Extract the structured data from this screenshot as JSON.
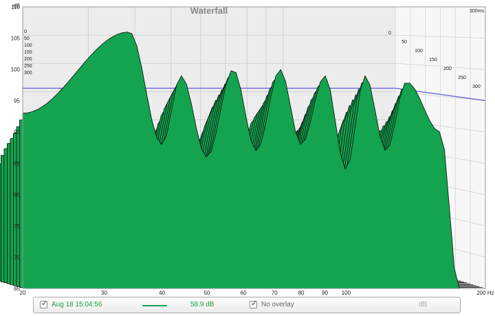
{
  "chart_data": {
    "type": "area",
    "title": "Waterfall",
    "xlabel": "",
    "ylabel": "dB",
    "x_unit": "Hz",
    "x_scale": "log",
    "xlim": [
      20,
      200
    ],
    "ylim": [
      65,
      110
    ],
    "x_ticks": [
      "20",
      "30",
      "40",
      "50",
      "60",
      "70",
      "80",
      "90",
      "100",
      "200 Hz"
    ],
    "y_ticks": [
      "65",
      "70",
      "75",
      "80",
      "85",
      "90",
      "95",
      "100",
      "105",
      "110"
    ],
    "time_axis_label": "300ms",
    "time_ticks": [
      "0",
      "50",
      "100",
      "150",
      "200",
      "250",
      "300"
    ],
    "reference_level_db": 97,
    "series_color": "#14a34f",
    "reference_line_color": "#6a66d8",
    "peaks": [
      {
        "freq_hz": 34,
        "level_db": 106
      },
      {
        "freq_hz": 44,
        "level_db": 99
      },
      {
        "freq_hz": 57,
        "level_db": 100
      },
      {
        "freq_hz": 72,
        "level_db": 100
      },
      {
        "freq_hz": 90,
        "level_db": 99
      },
      {
        "freq_hz": 110,
        "level_db": 99
      },
      {
        "freq_hz": 135,
        "level_db": 98
      }
    ],
    "notches": [
      {
        "freq_hz": 40,
        "level_db": 88
      },
      {
        "freq_hz": 50,
        "level_db": 86
      },
      {
        "freq_hz": 64,
        "level_db": 87
      },
      {
        "freq_hz": 80,
        "level_db": 88
      },
      {
        "freq_hz": 100,
        "level_db": 84
      },
      {
        "freq_hz": 122,
        "level_db": 87
      }
    ],
    "start_level_db": 93,
    "slices": 30
  },
  "legend": {
    "trace_checked": "✓",
    "trace_label": "Aug 18 15:04:56",
    "trace_value": "58.9 dB",
    "overlay_checked": "✓",
    "overlay_label": "No overlay",
    "overlay_unit": "dB",
    "trace_color": "#14a34f"
  }
}
